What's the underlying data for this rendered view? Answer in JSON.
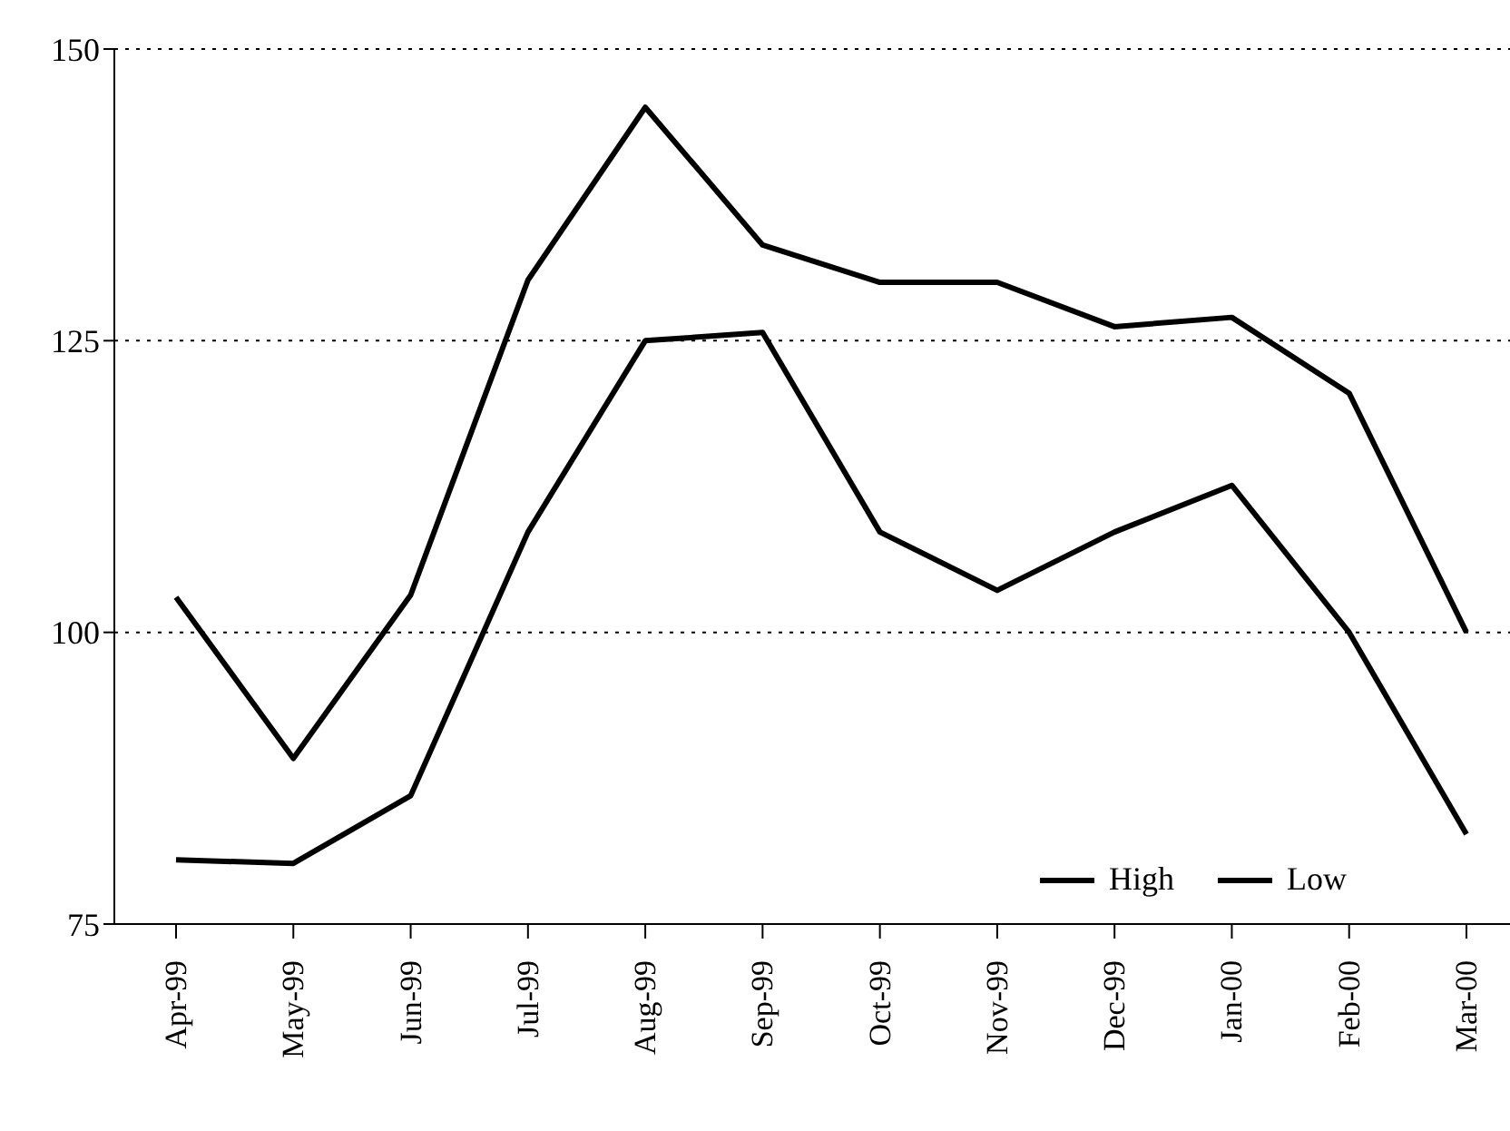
{
  "chart_data": {
    "type": "line",
    "categories": [
      "Apr-99",
      "May-99",
      "Jun-99",
      "Jul-99",
      "Aug-99",
      "Sep-99",
      "Oct-99",
      "Nov-99",
      "Dec-99",
      "Jan-00",
      "Feb-00",
      "Mar-00"
    ],
    "series": [
      {
        "name": "High",
        "color": "#000000",
        "values": [
          103,
          89.2,
          103.2,
          130.2,
          145,
          133.2,
          130,
          130,
          126.2,
          127,
          120.5,
          100
        ]
      },
      {
        "name": "Low",
        "color": "#000000",
        "values": [
          80.5,
          80.2,
          86,
          108.6,
          125,
          125.7,
          108.6,
          103.6,
          108.6,
          112.6,
          100,
          82.7
        ]
      }
    ],
    "ylim": [
      75,
      150
    ],
    "yticks": [
      75,
      100,
      125,
      150
    ],
    "grid": "y",
    "legend": "bottom right",
    "marker": "none",
    "line_style": "solid"
  }
}
